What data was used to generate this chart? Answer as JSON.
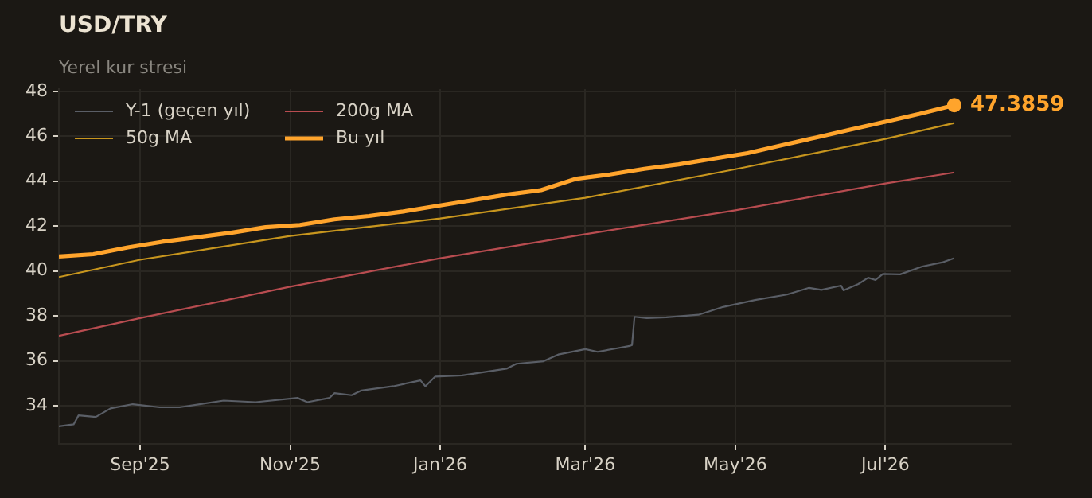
{
  "chart_data": {
    "type": "line",
    "title": "USD/TRY",
    "subtitle": "Yerel kur stresi",
    "xlim": [
      "2025-07-30",
      "2026-08-21"
    ],
    "xticks": [
      {
        "value": "2025-09-01",
        "label": "Sep'25"
      },
      {
        "value": "2025-11-01",
        "label": "Nov'25"
      },
      {
        "value": "2026-01-01",
        "label": "Jan'26"
      },
      {
        "value": "2026-03-01",
        "label": "Mar'26"
      },
      {
        "value": "2026-05-01",
        "label": "May'26"
      },
      {
        "value": "2026-07-01",
        "label": "Jul'26"
      }
    ],
    "ylim": [
      32.3,
      48.1
    ],
    "yticks": [
      34,
      36,
      38,
      40,
      42,
      44,
      46,
      48
    ],
    "grid": true,
    "legend": "top left",
    "marker": "none",
    "line_style": "solid",
    "annotations": [
      {
        "text": "47.3859",
        "x": "2026-07-29",
        "y": 47.3859
      }
    ],
    "series": [
      {
        "name": "Y-1 (geçen yıl)",
        "color": "#5a5e66",
        "x": [
          "2025-07-30",
          "2025-08-05",
          "2025-08-07",
          "2025-08-14",
          "2025-08-20",
          "2025-08-29",
          "2025-09-09",
          "2025-09-17",
          "2025-10-05",
          "2025-10-18",
          "2025-11-04",
          "2025-11-08",
          "2025-11-17",
          "2025-11-19",
          "2025-11-26",
          "2025-11-30",
          "2025-12-13",
          "2025-12-24",
          "2025-12-26",
          "2025-12-30",
          "2026-01-10",
          "2026-01-28",
          "2026-02-01",
          "2026-02-12",
          "2026-02-18",
          "2026-03-01",
          "2026-03-06",
          "2026-03-14",
          "2026-03-19",
          "2026-03-20",
          "2026-03-21",
          "2026-03-26",
          "2026-04-03",
          "2026-04-16",
          "2026-04-26",
          "2026-05-09",
          "2026-05-22",
          "2026-05-31",
          "2026-06-05",
          "2026-06-13",
          "2026-06-14",
          "2026-06-20",
          "2026-06-24",
          "2026-06-27",
          "2026-06-30",
          "2026-07-07",
          "2026-07-16",
          "2026-07-24",
          "2026-07-29"
        ],
        "values": [
          33.08,
          33.17,
          33.57,
          33.5,
          33.88,
          34.07,
          33.93,
          33.93,
          34.23,
          34.16,
          34.35,
          34.16,
          34.35,
          34.56,
          34.47,
          34.68,
          34.87,
          35.13,
          34.87,
          35.3,
          35.35,
          35.65,
          35.87,
          35.98,
          36.28,
          36.52,
          36.4,
          36.56,
          36.66,
          36.7,
          37.96,
          37.9,
          37.94,
          38.05,
          38.4,
          38.71,
          38.95,
          39.25,
          39.16,
          39.35,
          39.14,
          39.42,
          39.7,
          39.6,
          39.87,
          39.85,
          40.2,
          40.38,
          40.57
        ]
      },
      {
        "name": "50g MA",
        "color": "#c8961e",
        "x": [
          "2025-07-30",
          "2025-09-01",
          "2025-11-01",
          "2026-01-01",
          "2026-03-01",
          "2026-05-01",
          "2026-07-01",
          "2026-07-29"
        ],
        "values": [
          39.73,
          40.5,
          41.56,
          42.34,
          43.26,
          44.53,
          45.88,
          46.59
        ]
      },
      {
        "name": "200g MA",
        "color": "#b84c50",
        "x": [
          "2025-07-30",
          "2025-09-01",
          "2025-11-01",
          "2026-01-01",
          "2026-03-01",
          "2026-05-01",
          "2026-07-01",
          "2026-07-29"
        ],
        "values": [
          37.11,
          37.9,
          39.3,
          40.57,
          41.64,
          42.7,
          43.9,
          44.39
        ]
      },
      {
        "name": "Bu yıl",
        "color": "#ffa42c",
        "x": [
          "2025-07-30",
          "2025-08-13",
          "2025-08-27",
          "2025-09-10",
          "2025-09-24",
          "2025-10-08",
          "2025-10-22",
          "2025-11-05",
          "2025-11-19",
          "2025-12-03",
          "2025-12-17",
          "2025-12-31",
          "2026-01-14",
          "2026-01-28",
          "2026-02-11",
          "2026-02-25",
          "2026-03-11",
          "2026-03-25",
          "2026-04-08",
          "2026-04-22",
          "2026-05-06",
          "2026-05-20",
          "2026-06-03",
          "2026-06-17",
          "2026-07-01",
          "2026-07-15",
          "2026-07-29"
        ],
        "values": [
          40.65,
          40.75,
          41.05,
          41.3,
          41.5,
          41.7,
          41.95,
          42.05,
          42.3,
          42.45,
          42.65,
          42.9,
          43.15,
          43.4,
          43.6,
          44.1,
          44.3,
          44.55,
          44.75,
          45.0,
          45.25,
          45.6,
          45.95,
          46.3,
          46.65,
          47.0,
          47.3859
        ]
      }
    ]
  }
}
